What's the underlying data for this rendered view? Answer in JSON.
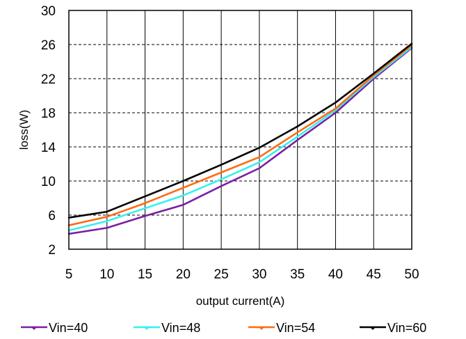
{
  "chart_data": {
    "type": "line",
    "xlabel": "output current(A)",
    "ylabel": "loss(W)",
    "x": [
      5,
      10,
      15,
      20,
      25,
      30,
      35,
      40,
      45,
      50
    ],
    "xlim": [
      5,
      50
    ],
    "ylim": [
      2,
      30
    ],
    "yticks": [
      2,
      6,
      10,
      14,
      18,
      22,
      26,
      30
    ],
    "xticks": [
      5,
      10,
      15,
      20,
      25,
      30,
      35,
      40,
      45,
      50
    ],
    "grid": {
      "vertical": "solid",
      "horizontal": "dashed"
    },
    "legend_position": "bottom",
    "series": [
      {
        "name": "Vin=40",
        "color": "#7B1FA2",
        "values": [
          3.8,
          4.5,
          5.9,
          7.2,
          9.4,
          11.5,
          14.8,
          18.0,
          22.0,
          25.6
        ]
      },
      {
        "name": "Vin=48",
        "color": "#33F0F0",
        "values": [
          4.2,
          5.3,
          6.8,
          8.3,
          10.2,
          12.2,
          15.2,
          18.3,
          22.2,
          25.7
        ]
      },
      {
        "name": "Vin=54",
        "color": "#FF6A10",
        "values": [
          4.8,
          5.8,
          7.4,
          9.2,
          11.0,
          12.8,
          15.7,
          18.5,
          22.4,
          25.9
        ]
      },
      {
        "name": "Vin=60",
        "color": "#000000",
        "values": [
          5.7,
          6.4,
          8.2,
          10.0,
          11.9,
          13.9,
          16.4,
          19.2,
          22.6,
          26.1
        ]
      }
    ]
  }
}
